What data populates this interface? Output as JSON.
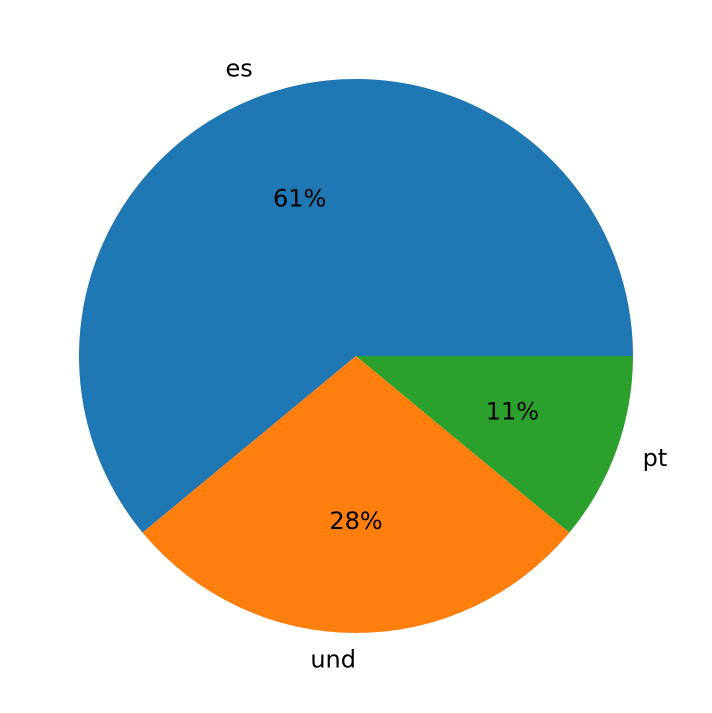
{
  "chart_data": {
    "type": "pie",
    "categories": [
      "es",
      "und",
      "pt"
    ],
    "values": [
      61,
      28,
      11
    ],
    "value_labels": [
      "61%",
      "28%",
      "11%"
    ],
    "colors": [
      "#1f77b4",
      "#ff7f0e",
      "#2ca02c"
    ]
  }
}
